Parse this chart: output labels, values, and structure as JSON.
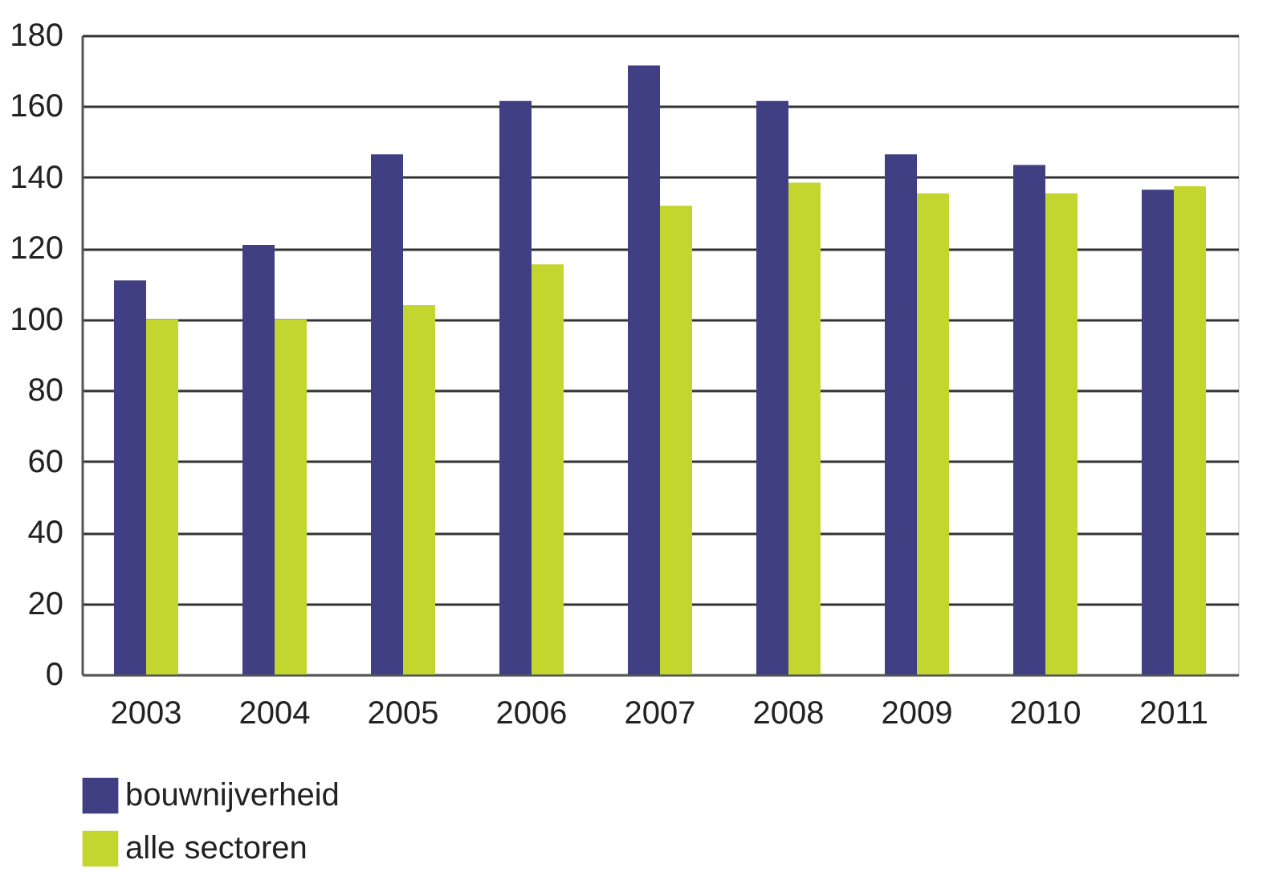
{
  "chart_data": {
    "type": "bar",
    "categories": [
      "2003",
      "2004",
      "2005",
      "2006",
      "2007",
      "2008",
      "2009",
      "2010",
      "2011"
    ],
    "series": [
      {
        "name": "bouwnijverheid",
        "color": "#403f84",
        "values": [
          111,
          121,
          146.5,
          161.5,
          171.5,
          161.5,
          146.5,
          143.5,
          136.5
        ]
      },
      {
        "name": "alle sectoren",
        "color": "#c2d62f",
        "values": [
          100,
          100,
          104,
          115.5,
          132,
          138.5,
          135.5,
          135.5,
          137.5
        ]
      }
    ],
    "ylim": [
      0,
      180
    ],
    "yticks": [
      0,
      20,
      40,
      60,
      80,
      100,
      120,
      140,
      160,
      180
    ],
    "grid": "y",
    "legend": "bottom left"
  }
}
